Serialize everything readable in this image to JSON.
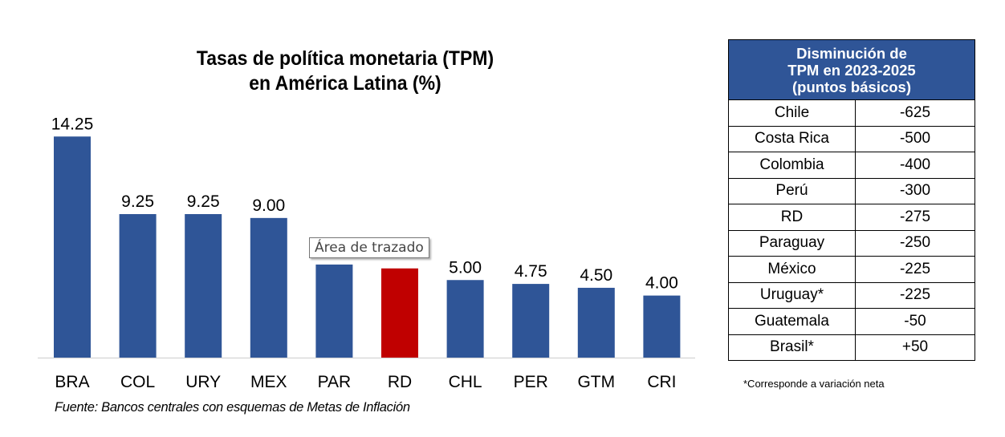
{
  "chart_data": {
    "type": "bar",
    "title": "Tasas de política monetaria (TPM) en América Latina (%)",
    "title_lines": [
      "Tasas de política monetaria (TPM)",
      "en América Latina (%)"
    ],
    "xlabel": "",
    "ylabel": "",
    "ylim": [
      0,
      15
    ],
    "grid": false,
    "legend": "none",
    "categories": [
      "BRA",
      "COL",
      "URY",
      "MEX",
      "PAR",
      "RD",
      "CHL",
      "PER",
      "GTM",
      "CRI"
    ],
    "values": [
      14.25,
      9.25,
      9.25,
      9.0,
      6.0,
      5.75,
      5.0,
      4.75,
      4.5,
      4.0
    ],
    "data_labels": [
      "14.25",
      "9.25",
      "9.25",
      "9.00",
      null,
      null,
      "5.00",
      "4.75",
      "4.50",
      "4.00"
    ],
    "colors": [
      "#2F5597",
      "#2F5597",
      "#2F5597",
      "#2F5597",
      "#2F5597",
      "#C00000",
      "#2F5597",
      "#2F5597",
      "#2F5597",
      "#2F5597"
    ],
    "source": "Fuente: Bancos centrales con esquemas de Metas de Inflación",
    "tooltip": "Área de trazado"
  },
  "table": {
    "header_lines": [
      "Disminución de",
      "TPM en 2023-2025",
      "(puntos básicos)"
    ],
    "rows": [
      {
        "country": "Chile",
        "value": "-625"
      },
      {
        "country": "Costa Rica",
        "value": "-500"
      },
      {
        "country": "Colombia",
        "value": "-400"
      },
      {
        "country": "Perú",
        "value": "-300"
      },
      {
        "country": "RD",
        "value": "-275"
      },
      {
        "country": "Paraguay",
        "value": "-250"
      },
      {
        "country": "México",
        "value": "-225"
      },
      {
        "country": "Uruguay*",
        "value": "-225"
      },
      {
        "country": "Guatemala",
        "value": "-50"
      },
      {
        "country": "Brasil*",
        "value": "+50"
      }
    ],
    "note": "*Corresponde a variación neta",
    "header_color": "#2F5597"
  }
}
